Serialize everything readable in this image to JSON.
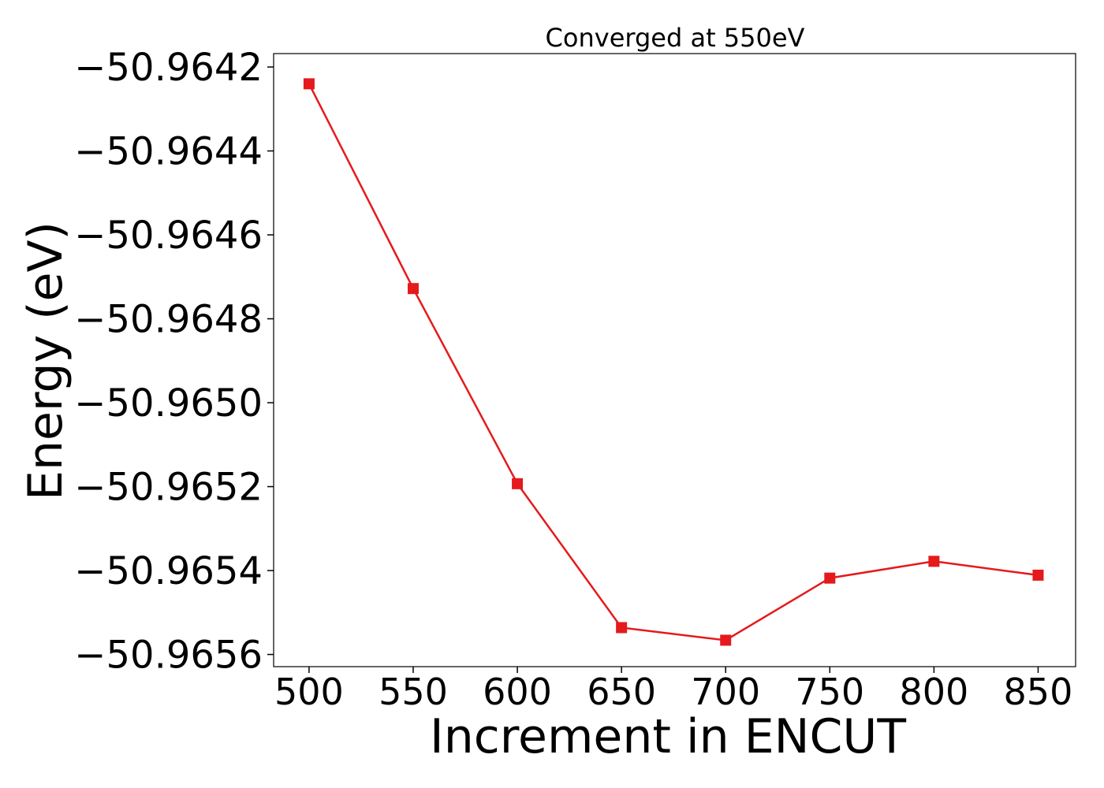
{
  "chart_data": {
    "type": "line",
    "title": "Converged at 550eV",
    "xlabel": "Increment in ENCUT",
    "ylabel": "Energy (eV)",
    "x": [
      500,
      550,
      600,
      650,
      700,
      750,
      800,
      850
    ],
    "y": [
      -50.96424,
      -50.964728,
      -50.965193,
      -50.965536,
      -50.965566,
      -50.965418,
      -50.965378,
      -50.965411
    ],
    "xticks": [
      500,
      550,
      600,
      650,
      700,
      750,
      800,
      850
    ],
    "xtick_labels": [
      "500",
      "550",
      "600",
      "650",
      "700",
      "750",
      "800",
      "850"
    ],
    "yticks": [
      -50.9642,
      -50.9644,
      -50.9646,
      -50.9648,
      -50.965,
      -50.9652,
      -50.9654,
      -50.9656
    ],
    "ytick_labels": [
      "−50.9642",
      "−50.9644",
      "−50.9646",
      "−50.9648",
      "−50.9650",
      "−50.9652",
      "−50.9654",
      "−50.9656"
    ],
    "xlim": [
      483,
      868
    ],
    "ylim": [
      -50.965629,
      -50.964168
    ],
    "grid": false,
    "marker": "square",
    "color": "#e41a1c"
  }
}
